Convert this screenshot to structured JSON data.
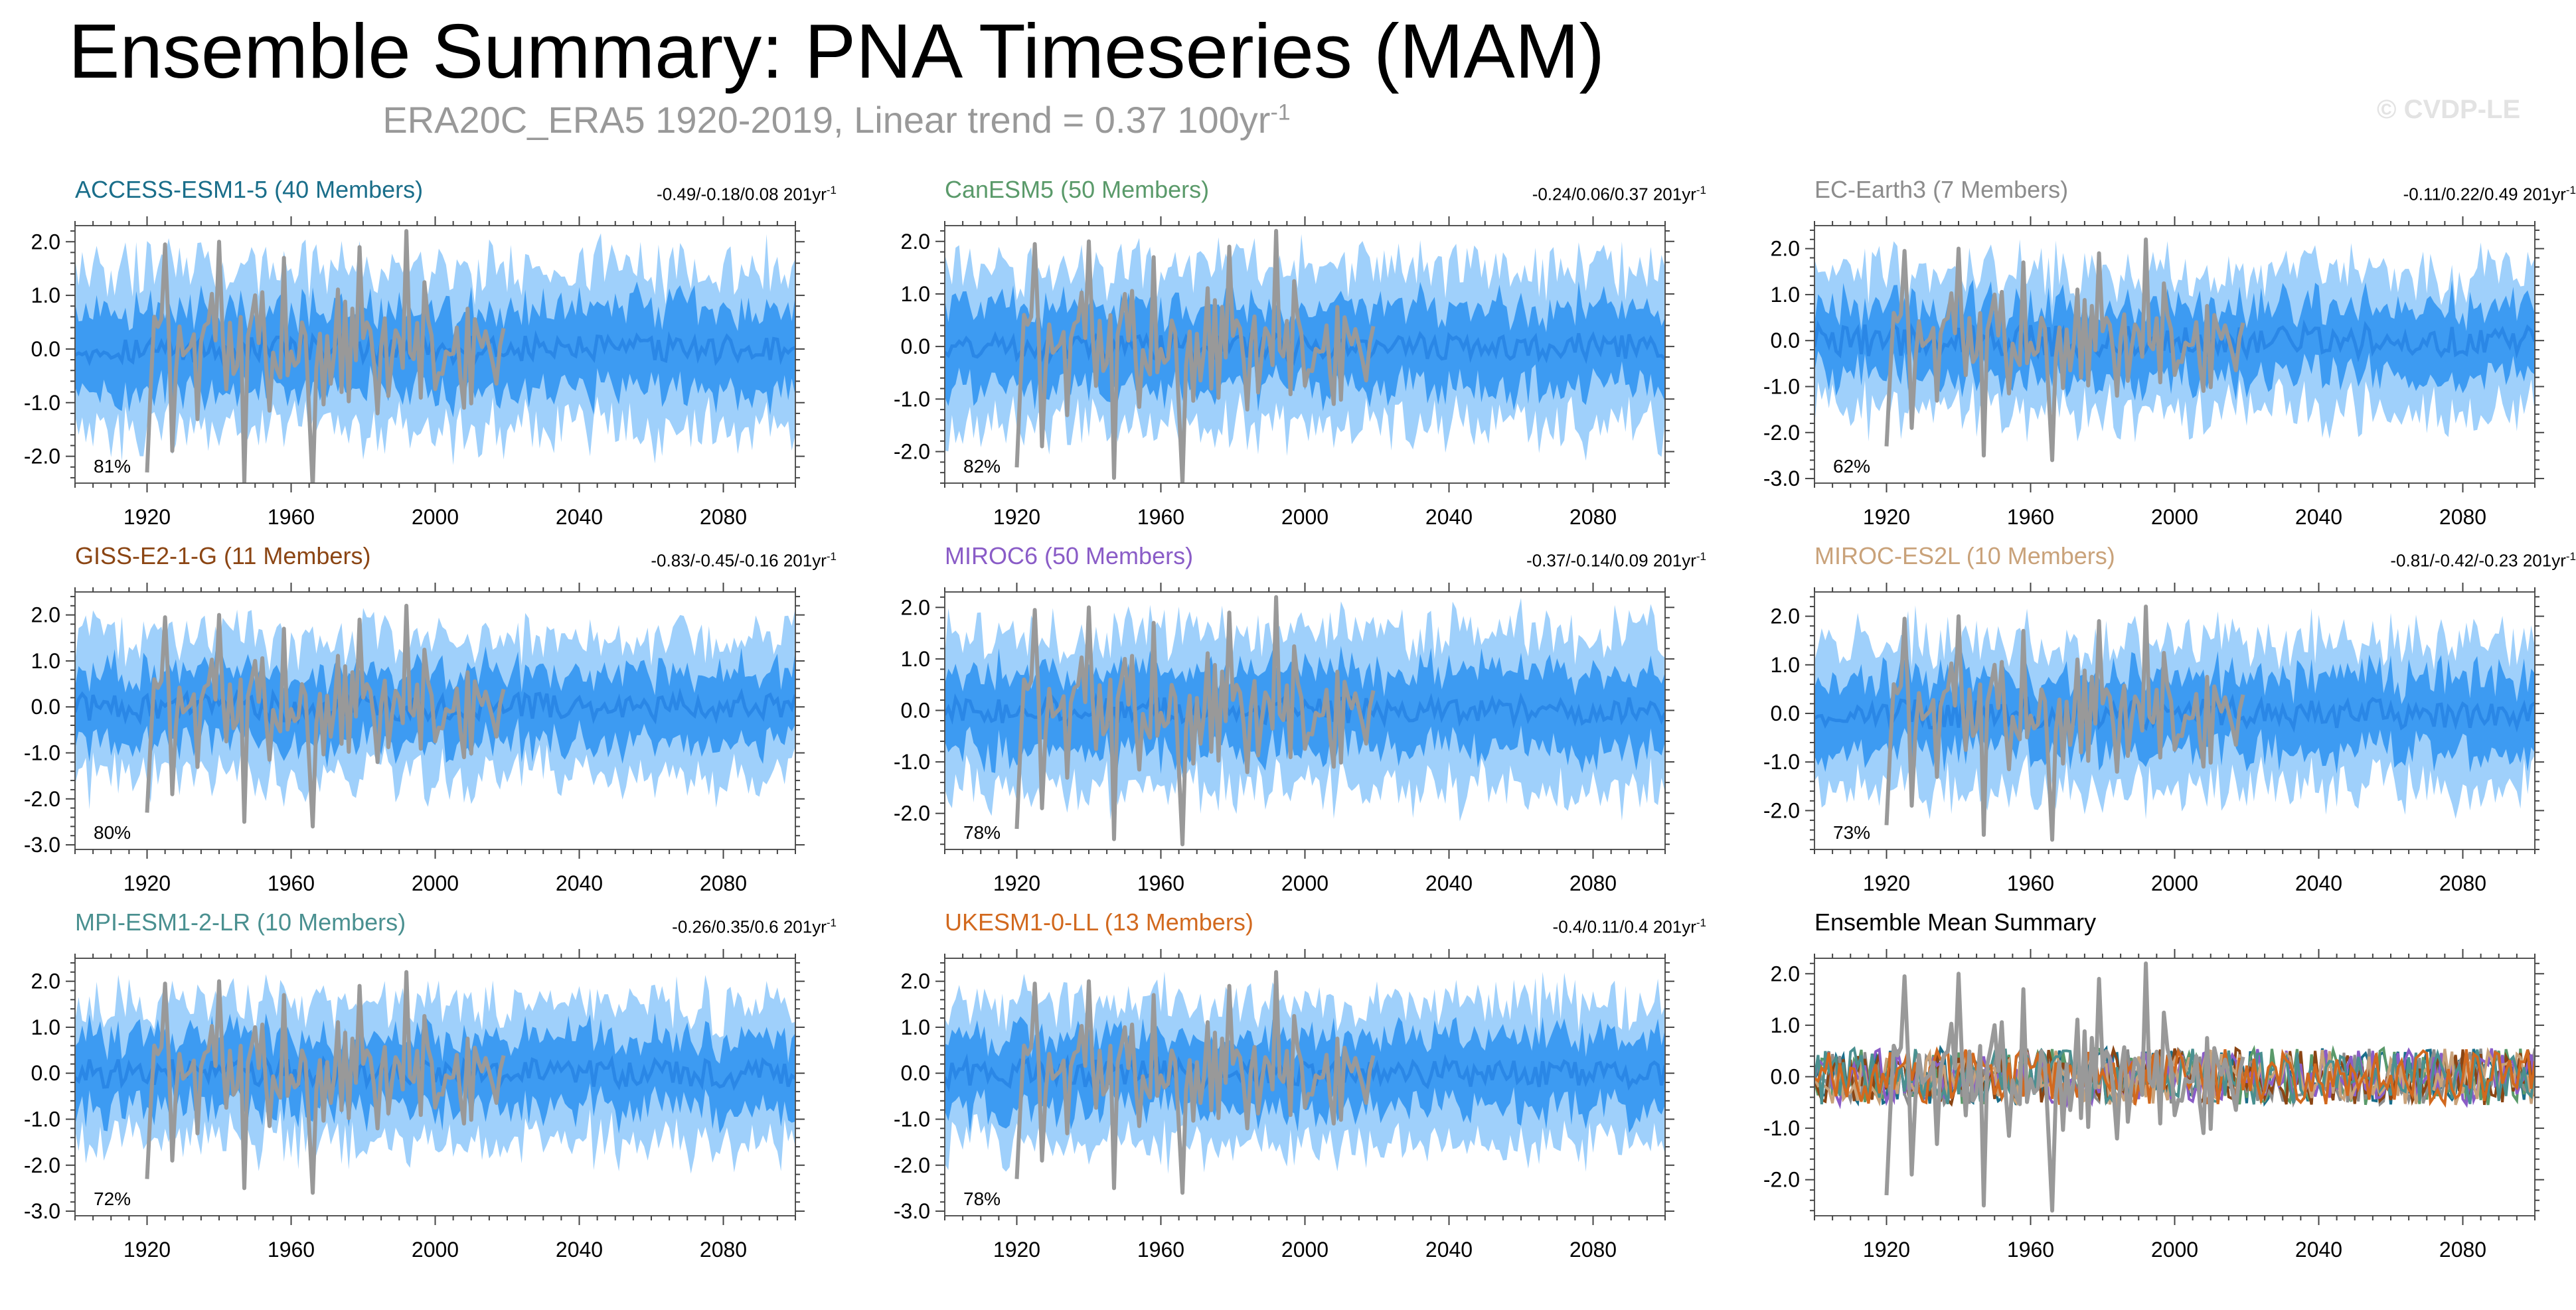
{
  "title": "Ensemble Summary: PNA Timeseries (MAM)",
  "subtitle": {
    "text": "ERA20C_ERA5 1920-2019, Linear trend = 0.37 100yr",
    "exponent": "-1"
  },
  "copyright": "© CVDP-LE",
  "colors": {
    "outer_band": "#9fd0fb",
    "inner_band": "#3d9bf2",
    "ensemble_mean": "#2a87e6",
    "observed": "#999999",
    "axis": "#000000"
  },
  "chart_data": [
    {
      "type": "line",
      "title": "ACCESS-ESM1-5 (40 Members)",
      "title_color": "#1a6e8a",
      "stats": "-0.49/-0.18/0.08 201yr",
      "stats_exponent": "-1",
      "percent_label": "81%",
      "x_range": [
        1900,
        2100
      ],
      "xticks": [
        1920,
        1960,
        2000,
        2040,
        2080
      ],
      "tick_labels_x": [
        "1920",
        "1960",
        "2000",
        "2040",
        "2080"
      ],
      "ylim": [
        -2.5,
        2.3
      ],
      "yticks": [
        2.0,
        1.0,
        0.0,
        -1.0,
        -2.0
      ],
      "tick_labels_y": [
        "2.0",
        "1.0",
        "0.0",
        "-1.0",
        "-2.0"
      ],
      "band_90_percent": [
        -1.5,
        1.5
      ],
      "band_66_percent": [
        -0.8,
        0.8
      ],
      "ensemble_mean_range": [
        -0.25,
        0.25
      ],
      "observed": {
        "name": "ERA20C_ERA5",
        "period": [
          1920,
          2019
        ]
      }
    },
    {
      "type": "line",
      "title": "CanESM5 (50 Members)",
      "title_color": "#5a9a6a",
      "stats": "-0.24/0.06/0.37 201yr",
      "stats_exponent": "-1",
      "percent_label": "82%",
      "x_range": [
        1900,
        2100
      ],
      "xticks": [
        1920,
        1960,
        2000,
        2040,
        2080
      ],
      "tick_labels_x": [
        "1920",
        "1960",
        "2000",
        "2040",
        "2080"
      ],
      "ylim": [
        -2.6,
        2.3
      ],
      "yticks": [
        2.0,
        1.0,
        0.0,
        -1.0,
        -2.0
      ],
      "tick_labels_y": [
        "2.0",
        "1.0",
        "0.0",
        "-1.0",
        "-2.0"
      ],
      "band_90_percent": [
        -1.5,
        1.5
      ],
      "band_66_percent": [
        -0.8,
        0.8
      ],
      "ensemble_mean_range": [
        -0.25,
        0.25
      ],
      "observed": {
        "name": "ERA20C_ERA5",
        "period": [
          1920,
          2019
        ]
      }
    },
    {
      "type": "line",
      "title": "EC-Earth3 (7 Members)",
      "title_color": "#8c8c8c",
      "stats": "-0.11/0.22/0.49 201yr",
      "stats_exponent": "-1",
      "percent_label": "62%",
      "x_range": [
        1900,
        2100
      ],
      "xticks": [
        1920,
        1960,
        2000,
        2040,
        2080
      ],
      "tick_labels_x": [
        "1920",
        "1960",
        "2000",
        "2040",
        "2080"
      ],
      "ylim": [
        -3.1,
        2.5
      ],
      "yticks": [
        2.0,
        1.0,
        0.0,
        -1.0,
        -2.0,
        -3.0
      ],
      "tick_labels_y": [
        "2.0",
        "1.0",
        "0.0",
        "-1.0",
        "-2.0",
        "-3.0"
      ],
      "band_90_percent": [
        -1.5,
        1.5
      ],
      "band_66_percent": [
        -0.8,
        0.8
      ],
      "ensemble_mean_range": [
        -0.35,
        0.35
      ],
      "observed": {
        "name": "ERA20C_ERA5",
        "period": [
          1920,
          2019
        ]
      }
    },
    {
      "type": "line",
      "title": "GISS-E2-1-G (11 Members)",
      "title_color": "#8b4513",
      "stats": "-0.83/-0.45/-0.16 201yr",
      "stats_exponent": "-1",
      "percent_label": "80%",
      "x_range": [
        1900,
        2100
      ],
      "xticks": [
        1920,
        1960,
        2000,
        2040,
        2080
      ],
      "tick_labels_x": [
        "1920",
        "1960",
        "2000",
        "2040",
        "2080"
      ],
      "ylim": [
        -3.1,
        2.5
      ],
      "yticks": [
        2.0,
        1.0,
        0.0,
        -1.0,
        -2.0,
        -3.0
      ],
      "tick_labels_y": [
        "2.0",
        "1.0",
        "0.0",
        "-1.0",
        "-2.0",
        "-3.0"
      ],
      "band_90_percent": [
        -1.5,
        1.5
      ],
      "band_66_percent": [
        -0.8,
        0.8
      ],
      "ensemble_mean_range": [
        -0.3,
        0.3
      ],
      "observed": {
        "name": "ERA20C_ERA5",
        "period": [
          1920,
          2019
        ]
      }
    },
    {
      "type": "line",
      "title": "MIROC6 (50 Members)",
      "title_color": "#8a5cc7",
      "stats": "-0.37/-0.14/0.09 201yr",
      "stats_exponent": "-1",
      "percent_label": "78%",
      "x_range": [
        1900,
        2100
      ],
      "xticks": [
        1920,
        1960,
        2000,
        2040,
        2080
      ],
      "tick_labels_x": [
        "1920",
        "1960",
        "2000",
        "2040",
        "2080"
      ],
      "ylim": [
        -2.7,
        2.3
      ],
      "yticks": [
        2.0,
        1.0,
        0.0,
        -1.0,
        -2.0
      ],
      "tick_labels_y": [
        "2.0",
        "1.0",
        "0.0",
        "-1.0",
        "-2.0"
      ],
      "band_90_percent": [
        -1.5,
        1.5
      ],
      "band_66_percent": [
        -0.8,
        0.8
      ],
      "ensemble_mean_range": [
        -0.25,
        0.25
      ],
      "observed": {
        "name": "ERA20C_ERA5",
        "period": [
          1920,
          2019
        ]
      }
    },
    {
      "type": "line",
      "title": "MIROC-ES2L (10 Members)",
      "title_color": "#c9a27a",
      "stats": "-0.81/-0.42/-0.23 201yr",
      "stats_exponent": "-1",
      "percent_label": "73%",
      "x_range": [
        1900,
        2100
      ],
      "xticks": [
        1920,
        1960,
        2000,
        2040,
        2080
      ],
      "tick_labels_x": [
        "1920",
        "1960",
        "2000",
        "2040",
        "2080"
      ],
      "ylim": [
        -2.8,
        2.5
      ],
      "yticks": [
        2.0,
        1.0,
        0.0,
        -1.0,
        -2.0
      ],
      "tick_labels_y": [
        "2.0",
        "1.0",
        "0.0",
        "-1.0",
        "-2.0"
      ],
      "band_90_percent": [
        -1.5,
        1.5
      ],
      "band_66_percent": [
        -0.8,
        0.8
      ],
      "ensemble_mean_range": [
        -0.3,
        0.3
      ],
      "observed": {
        "name": "ERA20C_ERA5",
        "period": [
          1920,
          2019
        ]
      }
    },
    {
      "type": "line",
      "title": "MPI-ESM1-2-LR (10 Members)",
      "title_color": "#4a9090",
      "stats": "-0.26/0.35/0.6 201yr",
      "stats_exponent": "-1",
      "percent_label": "72%",
      "x_range": [
        1900,
        2100
      ],
      "xticks": [
        1920,
        1960,
        2000,
        2040,
        2080
      ],
      "tick_labels_x": [
        "1920",
        "1960",
        "2000",
        "2040",
        "2080"
      ],
      "ylim": [
        -3.1,
        2.5
      ],
      "yticks": [
        2.0,
        1.0,
        0.0,
        -1.0,
        -2.0,
        -3.0
      ],
      "tick_labels_y": [
        "2.0",
        "1.0",
        "0.0",
        "-1.0",
        "-2.0",
        "-3.0"
      ],
      "band_90_percent": [
        -1.5,
        1.5
      ],
      "band_66_percent": [
        -0.8,
        0.8
      ],
      "ensemble_mean_range": [
        -0.3,
        0.3
      ],
      "observed": {
        "name": "ERA20C_ERA5",
        "period": [
          1920,
          2019
        ]
      }
    },
    {
      "type": "line",
      "title": "UKESM1-0-LL (13 Members)",
      "title_color": "#d2691e",
      "stats": "-0.4/0.11/0.4 201yr",
      "stats_exponent": "-1",
      "percent_label": "78%",
      "x_range": [
        1900,
        2100
      ],
      "xticks": [
        1920,
        1960,
        2000,
        2040,
        2080
      ],
      "tick_labels_x": [
        "1920",
        "1960",
        "2000",
        "2040",
        "2080"
      ],
      "ylim": [
        -3.1,
        2.5
      ],
      "yticks": [
        2.0,
        1.0,
        0.0,
        -1.0,
        -2.0,
        -3.0
      ],
      "tick_labels_y": [
        "2.0",
        "1.0",
        "0.0",
        "-1.0",
        "-2.0",
        "-3.0"
      ],
      "band_90_percent": [
        -1.5,
        1.5
      ],
      "band_66_percent": [
        -0.8,
        0.8
      ],
      "ensemble_mean_range": [
        -0.3,
        0.3
      ],
      "observed": {
        "name": "ERA20C_ERA5",
        "period": [
          1920,
          2019
        ]
      }
    },
    {
      "type": "line",
      "title": "Ensemble Mean Summary",
      "title_color": "#000000",
      "stats": "",
      "stats_exponent": "",
      "percent_label": "",
      "x_range": [
        1900,
        2100
      ],
      "xticks": [
        1920,
        1960,
        2000,
        2040,
        2080
      ],
      "tick_labels_x": [
        "1920",
        "1960",
        "2000",
        "2040",
        "2080"
      ],
      "ylim": [
        -2.7,
        2.3
      ],
      "yticks": [
        2.0,
        1.0,
        0.0,
        -1.0,
        -2.0
      ],
      "tick_labels_y": [
        "2.0",
        "1.0",
        "0.0",
        "-1.0",
        "-2.0"
      ],
      "summary": true,
      "series_colors": [
        "#1a6e8a",
        "#5a9a6a",
        "#8c8c8c",
        "#8b4513",
        "#8a5cc7",
        "#c9a27a",
        "#4a9090",
        "#d2691e"
      ],
      "observed": {
        "name": "ERA20C_ERA5",
        "period": [
          1920,
          2019
        ]
      }
    }
  ]
}
